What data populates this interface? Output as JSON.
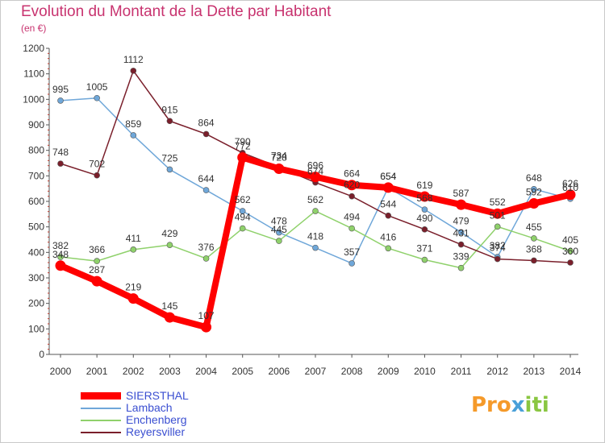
{
  "chart_data": {
    "type": "line",
    "title": "Evolution du Montant de la Dette par Habitant",
    "subtitle": "(en €)",
    "x": [
      "2000",
      "2001",
      "2002",
      "2003",
      "2004",
      "2005",
      "2006",
      "2007",
      "2008",
      "2009",
      "2010",
      "2011",
      "2012",
      "2013",
      "2014"
    ],
    "ylim": [
      0,
      1200
    ],
    "yticks": [
      0,
      100,
      200,
      300,
      400,
      500,
      600,
      700,
      800,
      900,
      1000,
      1100,
      1200
    ],
    "grid": false,
    "legend_position": "bottom-left",
    "series": [
      {
        "name": "SIERSTHAL",
        "color": "#ff0000",
        "highlight": true,
        "values": [
          348,
          287,
          219,
          145,
          107,
          772,
          728,
          696,
          664,
          654,
          619,
          587,
          552,
          592,
          626
        ]
      },
      {
        "name": "Lambach",
        "color": "#6fa7d9",
        "values": [
          995,
          1005,
          859,
          725,
          644,
          562,
          478,
          418,
          357,
          654,
          568,
          479,
          382,
          648,
          610
        ]
      },
      {
        "name": "Enchenberg",
        "color": "#8fd16b",
        "values": [
          382,
          366,
          411,
          429,
          376,
          494,
          445,
          562,
          494,
          416,
          371,
          339,
          501,
          455,
          405
        ]
      },
      {
        "name": "Reyersviller",
        "color": "#7a1f2b",
        "values": [
          748,
          702,
          1112,
          915,
          864,
          790,
          734,
          674,
          620,
          544,
          490,
          431,
          374,
          368,
          360
        ]
      }
    ],
    "data_labels": [
      {
        "series": 0,
        "labels": [
          "348",
          "287",
          "219",
          "145",
          "107",
          "772",
          "728",
          "696",
          "664",
          "654",
          "619",
          "587",
          "552",
          "592",
          "626"
        ]
      },
      {
        "series": 1,
        "labels": [
          "995",
          "1005",
          "859",
          "725",
          "644",
          "562",
          "478",
          "418",
          "357",
          "654",
          "568",
          "479",
          "382",
          "648",
          "610"
        ]
      },
      {
        "series": 2,
        "labels": [
          "382",
          "366",
          "411",
          "429",
          "376",
          "494",
          "445",
          "562",
          "494",
          "416",
          "371",
          "339",
          "501",
          "455",
          "405"
        ]
      },
      {
        "series": 3,
        "labels": [
          "748",
          "702",
          "1112",
          "915",
          "864",
          "790",
          "734",
          "674",
          "620",
          "544",
          "490",
          "431",
          "374",
          "368",
          "360"
        ]
      }
    ]
  },
  "legend": {
    "items": [
      {
        "label": "SIERSTHAL",
        "color": "#ff0000"
      },
      {
        "label": "Lambach",
        "color": "#6fa7d9"
      },
      {
        "label": "Enchenberg",
        "color": "#8fd16b"
      },
      {
        "label": "Reyersviller",
        "color": "#7a1f2b"
      }
    ]
  },
  "logo": {
    "part1": "Pro",
    "part2": "x",
    "part3": "iti"
  }
}
